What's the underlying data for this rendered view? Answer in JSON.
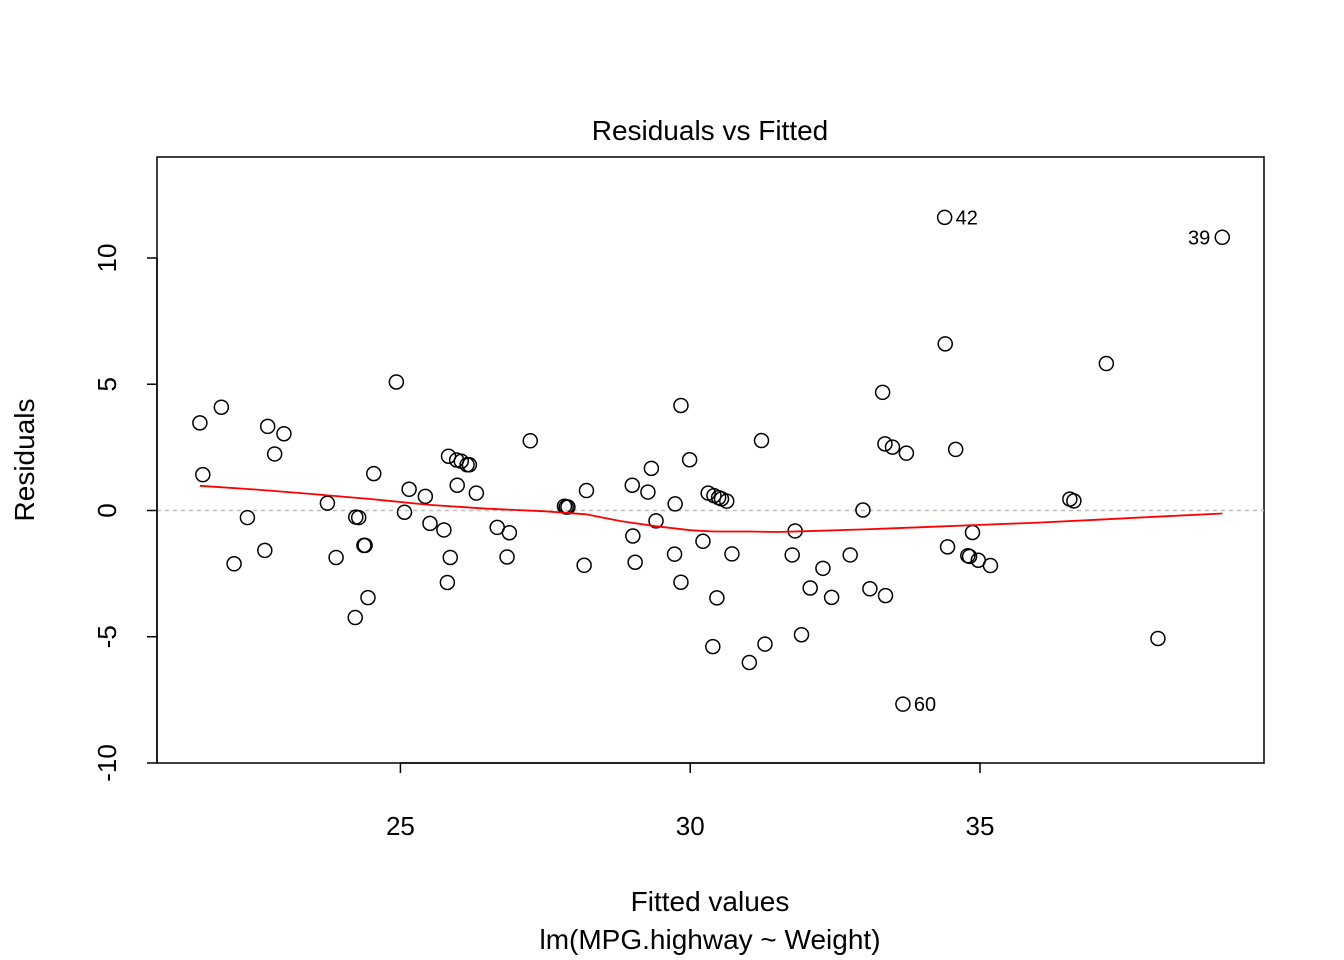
{
  "chart_data": {
    "type": "scatter",
    "title": "Residuals vs Fitted",
    "xlabel": "Fitted values",
    "subtitle": "lm(MPG.highway ~ Weight)",
    "ylabel": "Residuals",
    "xlim": [
      20.8,
      39.9
    ],
    "ylim": [
      -10,
      14
    ],
    "xticks": [
      25,
      30,
      35
    ],
    "yticks": [
      -10,
      -5,
      0,
      5,
      10
    ],
    "reference_line": 0,
    "colors": {
      "points": "#000000",
      "smooth": "#ff0000",
      "reference": "#bebebe",
      "frame": "#000000"
    },
    "points": [
      {
        "x": 21.54,
        "y": 3.47
      },
      {
        "x": 21.59,
        "y": 1.42
      },
      {
        "x": 21.91,
        "y": 4.09
      },
      {
        "x": 22.13,
        "y": -2.11
      },
      {
        "x": 22.36,
        "y": -0.28
      },
      {
        "x": 22.66,
        "y": -1.58
      },
      {
        "x": 22.71,
        "y": 3.33
      },
      {
        "x": 22.83,
        "y": 2.24
      },
      {
        "x": 22.99,
        "y": 3.04
      },
      {
        "x": 23.74,
        "y": 0.29
      },
      {
        "x": 23.89,
        "y": -1.86
      },
      {
        "x": 24.22,
        "y": -4.24
      },
      {
        "x": 24.23,
        "y": -0.26
      },
      {
        "x": 24.28,
        "y": -0.28
      },
      {
        "x": 24.37,
        "y": -1.38
      },
      {
        "x": 24.39,
        "y": -1.38
      },
      {
        "x": 24.44,
        "y": -3.45
      },
      {
        "x": 24.54,
        "y": 1.46
      },
      {
        "x": 24.93,
        "y": 5.09
      },
      {
        "x": 25.07,
        "y": -0.07
      },
      {
        "x": 25.15,
        "y": 0.84
      },
      {
        "x": 25.43,
        "y": 0.56
      },
      {
        "x": 25.51,
        "y": -0.51
      },
      {
        "x": 25.75,
        "y": -0.77
      },
      {
        "x": 25.81,
        "y": -2.85
      },
      {
        "x": 25.83,
        "y": 2.15
      },
      {
        "x": 25.86,
        "y": -1.86
      },
      {
        "x": 25.97,
        "y": 2.0
      },
      {
        "x": 25.98,
        "y": 1.0
      },
      {
        "x": 26.05,
        "y": 1.95
      },
      {
        "x": 26.15,
        "y": 1.81
      },
      {
        "x": 26.19,
        "y": 1.81
      },
      {
        "x": 26.31,
        "y": 0.69
      },
      {
        "x": 26.67,
        "y": -0.67
      },
      {
        "x": 26.84,
        "y": -1.84
      },
      {
        "x": 26.88,
        "y": -0.88
      },
      {
        "x": 27.24,
        "y": 2.76
      },
      {
        "x": 27.83,
        "y": 0.17
      },
      {
        "x": 27.86,
        "y": 0.14
      },
      {
        "x": 27.89,
        "y": 0.14
      },
      {
        "x": 28.17,
        "y": -2.17
      },
      {
        "x": 28.21,
        "y": 0.79
      },
      {
        "x": 29.0,
        "y": 1.0
      },
      {
        "x": 29.01,
        "y": -1.01
      },
      {
        "x": 29.05,
        "y": -2.05
      },
      {
        "x": 29.27,
        "y": 0.73
      },
      {
        "x": 29.33,
        "y": 1.67
      },
      {
        "x": 29.41,
        "y": -0.41
      },
      {
        "x": 29.73,
        "y": -1.73
      },
      {
        "x": 29.74,
        "y": 0.26
      },
      {
        "x": 29.84,
        "y": -2.84
      },
      {
        "x": 29.84,
        "y": 4.16
      },
      {
        "x": 29.99,
        "y": 2.01
      },
      {
        "x": 30.22,
        "y": -1.22
      },
      {
        "x": 30.31,
        "y": 0.69
      },
      {
        "x": 30.39,
        "y": -5.39
      },
      {
        "x": 30.41,
        "y": 0.59
      },
      {
        "x": 30.46,
        "y": -3.46
      },
      {
        "x": 30.49,
        "y": 0.51
      },
      {
        "x": 30.54,
        "y": 0.46
      },
      {
        "x": 30.63,
        "y": 0.37
      },
      {
        "x": 30.72,
        "y": -1.72
      },
      {
        "x": 31.02,
        "y": -6.02
      },
      {
        "x": 31.23,
        "y": 2.77
      },
      {
        "x": 31.29,
        "y": -5.29
      },
      {
        "x": 31.76,
        "y": -1.76
      },
      {
        "x": 31.81,
        "y": -0.81
      },
      {
        "x": 31.92,
        "y": -4.92
      },
      {
        "x": 32.07,
        "y": -3.07
      },
      {
        "x": 32.29,
        "y": -2.29
      },
      {
        "x": 32.44,
        "y": -3.44
      },
      {
        "x": 32.76,
        "y": -1.76
      },
      {
        "x": 32.98,
        "y": 0.02
      },
      {
        "x": 33.1,
        "y": -3.1
      },
      {
        "x": 33.32,
        "y": 4.68
      },
      {
        "x": 33.36,
        "y": 2.64
      },
      {
        "x": 33.37,
        "y": -3.37
      },
      {
        "x": 33.49,
        "y": 2.51
      },
      {
        "x": 33.67,
        "y": -7.67,
        "label": "60"
      },
      {
        "x": 33.73,
        "y": 2.27
      },
      {
        "x": 34.39,
        "y": 11.61,
        "label": "42"
      },
      {
        "x": 34.4,
        "y": 6.6
      },
      {
        "x": 34.44,
        "y": -1.44
      },
      {
        "x": 34.58,
        "y": 2.42
      },
      {
        "x": 34.79,
        "y": -1.79
      },
      {
        "x": 34.82,
        "y": -1.82
      },
      {
        "x": 34.87,
        "y": -0.87
      },
      {
        "x": 34.97,
        "y": -1.97
      },
      {
        "x": 35.18,
        "y": -2.18
      },
      {
        "x": 36.55,
        "y": 0.45
      },
      {
        "x": 36.62,
        "y": 0.38
      },
      {
        "x": 37.18,
        "y": 5.82
      },
      {
        "x": 38.07,
        "y": -5.07
      },
      {
        "x": 39.18,
        "y": 10.82,
        "label": "39"
      }
    ],
    "smooth": {
      "x": [
        21.54,
        22.5,
        23.5,
        24.5,
        25.5,
        26.5,
        27.5,
        28.2,
        28.8,
        29.4,
        30.0,
        30.4,
        31.0,
        31.5,
        32.0,
        33.0,
        34.0,
        35.0,
        36.0,
        37.0,
        38.0,
        39.18
      ],
      "y": [
        0.98,
        0.83,
        0.65,
        0.45,
        0.22,
        0.07,
        -0.03,
        -0.15,
        -0.42,
        -0.62,
        -0.78,
        -0.83,
        -0.83,
        -0.85,
        -0.82,
        -0.75,
        -0.66,
        -0.57,
        -0.48,
        -0.37,
        -0.25,
        -0.12
      ]
    }
  }
}
